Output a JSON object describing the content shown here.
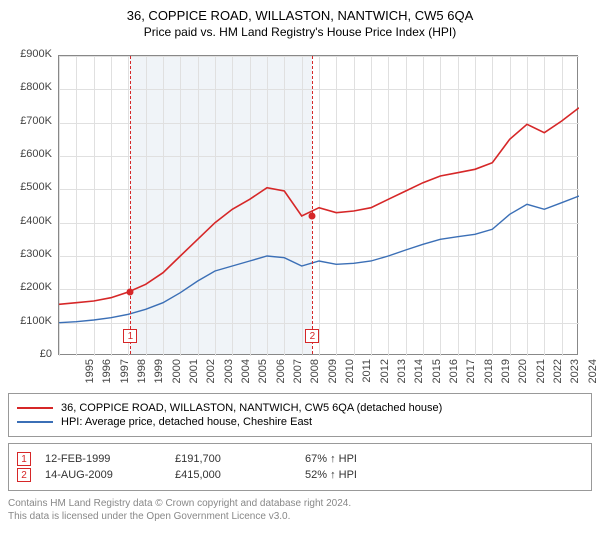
{
  "title": "36, COPPICE ROAD, WILLASTON, NANTWICH, CW5 6QA",
  "subtitle": "Price paid vs. HM Land Registry's House Price Index (HPI)",
  "chart": {
    "type": "line",
    "xlim": [
      1995,
      2025
    ],
    "ylim": [
      0,
      900000
    ],
    "ytick_step": 100000,
    "yticks": [
      "£0",
      "£100K",
      "£200K",
      "£300K",
      "£400K",
      "£500K",
      "£600K",
      "£700K",
      "£800K",
      "£900K"
    ],
    "xticks": [
      "1995",
      "1996",
      "1997",
      "1998",
      "1999",
      "2000",
      "2001",
      "2002",
      "2003",
      "2004",
      "2005",
      "2006",
      "2007",
      "2008",
      "2009",
      "2010",
      "2011",
      "2012",
      "2013",
      "2014",
      "2015",
      "2016",
      "2017",
      "2018",
      "2019",
      "2020",
      "2021",
      "2022",
      "2023",
      "2024"
    ],
    "background_color": "#ffffff",
    "grid_color": "#e0e0e0",
    "border_color": "#888888",
    "highlight_band_color": "#f0f4f8",
    "highlight_band": [
      1999.1,
      2009.6
    ],
    "series": [
      {
        "name": "property",
        "color": "#d62728",
        "line_width": 1.6,
        "years": [
          1995,
          1996,
          1997,
          1998,
          1999,
          2000,
          2001,
          2002,
          2003,
          2004,
          2005,
          2006,
          2007,
          2008,
          2009,
          2010,
          2011,
          2012,
          2013,
          2014,
          2015,
          2016,
          2017,
          2018,
          2019,
          2020,
          2021,
          2022,
          2023,
          2024,
          2025
        ],
        "values": [
          155000,
          160000,
          165000,
          175000,
          192000,
          215000,
          250000,
          300000,
          350000,
          400000,
          440000,
          470000,
          505000,
          495000,
          420000,
          445000,
          430000,
          435000,
          445000,
          470000,
          495000,
          520000,
          540000,
          550000,
          560000,
          580000,
          650000,
          695000,
          670000,
          705000,
          745000
        ]
      },
      {
        "name": "hpi",
        "color": "#3b6fb6",
        "line_width": 1.4,
        "years": [
          1995,
          1996,
          1997,
          1998,
          1999,
          2000,
          2001,
          2002,
          2003,
          2004,
          2005,
          2006,
          2007,
          2008,
          2009,
          2010,
          2011,
          2012,
          2013,
          2014,
          2015,
          2016,
          2017,
          2018,
          2019,
          2020,
          2021,
          2022,
          2023,
          2024,
          2025
        ],
        "values": [
          100000,
          103000,
          108000,
          115000,
          125000,
          140000,
          160000,
          190000,
          225000,
          255000,
          270000,
          285000,
          300000,
          295000,
          270000,
          285000,
          275000,
          278000,
          285000,
          300000,
          318000,
          335000,
          350000,
          358000,
          365000,
          380000,
          425000,
          455000,
          440000,
          460000,
          480000
        ]
      }
    ],
    "markers": [
      {
        "num": "1",
        "year": 1999.12,
        "value": 192000,
        "box_y": 80000
      },
      {
        "num": "2",
        "year": 2009.62,
        "value": 420000,
        "box_y": 80000
      }
    ]
  },
  "legend": {
    "items": [
      {
        "color": "#d62728",
        "label": "36, COPPICE ROAD, WILLASTON, NANTWICH, CW5 6QA (detached house)"
      },
      {
        "color": "#3b6fb6",
        "label": "HPI: Average price, detached house, Cheshire East"
      }
    ]
  },
  "sales": [
    {
      "num": "1",
      "date": "12-FEB-1999",
      "price": "£191,700",
      "ratio": "67% ↑ HPI"
    },
    {
      "num": "2",
      "date": "14-AUG-2009",
      "price": "£415,000",
      "ratio": "52% ↑ HPI"
    }
  ],
  "footnote1": "Contains HM Land Registry data © Crown copyright and database right 2024.",
  "footnote2": "This data is licensed under the Open Government Licence v3.0."
}
